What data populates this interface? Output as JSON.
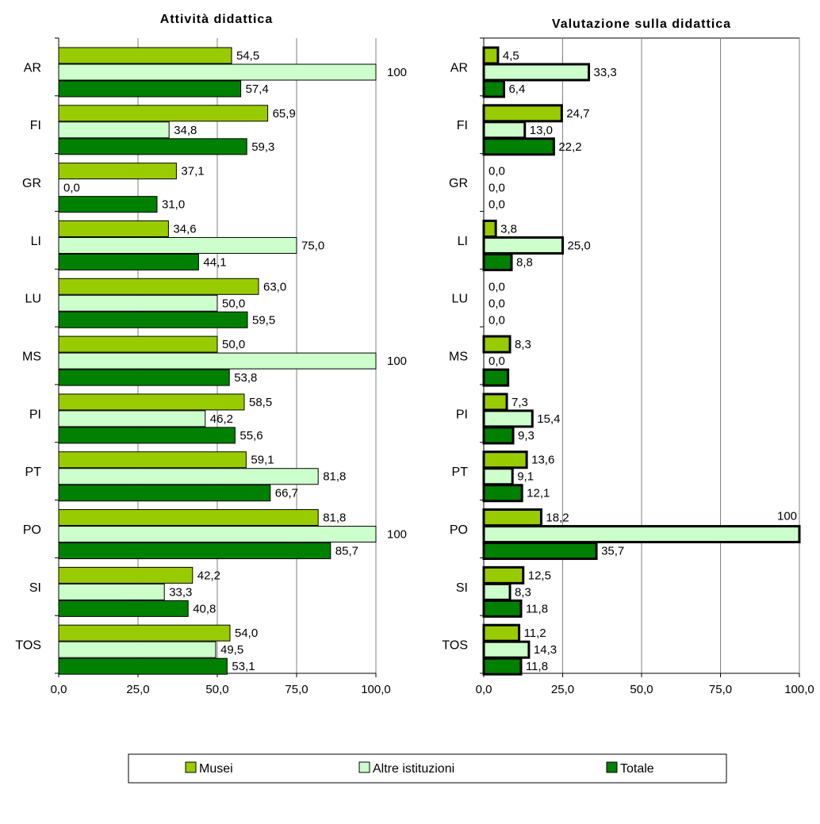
{
  "chart_data": [
    {
      "type": "bar",
      "orientation": "horizontal",
      "title": "Attività didattica",
      "categories": [
        "AR",
        "FI",
        "GR",
        "LI",
        "LU",
        "MS",
        "PI",
        "PT",
        "PO",
        "SI",
        "TOS"
      ],
      "series": [
        {
          "name": "Musei",
          "values": [
            54.5,
            65.9,
            37.1,
            34.6,
            63.0,
            50.0,
            58.5,
            59.1,
            81.8,
            42.2,
            54.0
          ]
        },
        {
          "name": "Altre istituzioni",
          "values": [
            100,
            34.8,
            0.0,
            75.0,
            50.0,
            100,
            46.2,
            81.8,
            100,
            33.3,
            49.5
          ]
        },
        {
          "name": "Totale",
          "values": [
            57.4,
            59.3,
            31.0,
            44.1,
            59.5,
            53.8,
            55.6,
            66.7,
            85.7,
            40.8,
            53.1
          ]
        }
      ],
      "labels": [
        [
          "54,5",
          "65,9",
          "37,1",
          "34,6",
          "63,0",
          "50,0",
          "58,5",
          "59,1",
          "81,8",
          "42,2",
          "54,0"
        ],
        [
          "100",
          "34,8",
          "0,0",
          "75,0",
          "50,0",
          "100",
          "46,2",
          "81,8",
          "100",
          "33,3",
          "49,5"
        ],
        [
          "57,4",
          "59,3",
          "31,0",
          "44,1",
          "59,5",
          "53,8",
          "55,6",
          "66,7",
          "85,7",
          "40,8",
          "53,1"
        ]
      ],
      "xlim": [
        0,
        100
      ],
      "xticks": [
        "0,0",
        "25,0",
        "50,0",
        "75,0",
        "100,0"
      ],
      "grid": true
    },
    {
      "type": "bar",
      "orientation": "horizontal",
      "title": "Valutazione sulla didattica",
      "categories": [
        "AR",
        "FI",
        "GR",
        "LI",
        "LU",
        "MS",
        "PI",
        "PT",
        "PO",
        "SI",
        "TOS"
      ],
      "series": [
        {
          "name": "Musei",
          "values": [
            4.5,
            24.7,
            0.0,
            3.8,
            0.0,
            8.3,
            7.3,
            13.6,
            18.2,
            12.5,
            11.2
          ]
        },
        {
          "name": "Altre istituzioni",
          "values": [
            33.3,
            13.0,
            0.0,
            25.0,
            0.0,
            0.0,
            15.4,
            9.1,
            100,
            8.3,
            14.3
          ]
        },
        {
          "name": "Totale",
          "values": [
            6.4,
            22.2,
            0.0,
            8.8,
            0.0,
            7.7,
            9.3,
            12.1,
            35.7,
            11.8,
            11.8
          ]
        }
      ],
      "labels": [
        [
          "4,5",
          "24,7",
          "0,0",
          "3,8",
          "0,0",
          "8,3",
          "7,3",
          "13,6",
          "18,2",
          "12,5",
          "11,2"
        ],
        [
          "33,3",
          "13,0",
          "0,0",
          "25,0",
          "0,0",
          "0,0",
          "15,4",
          "9,1",
          "100",
          "8,3",
          "14,3"
        ],
        [
          "6,4",
          "22,2",
          "0,0",
          "8,8",
          "0,0",
          "",
          "9,3",
          "12,1",
          "35,7",
          "11,8",
          "11,8"
        ]
      ],
      "xlim": [
        0,
        100
      ],
      "xticks": [
        "0,0",
        "25,0",
        "50,0",
        "75,0",
        "100,0"
      ],
      "grid": true
    }
  ],
  "legend": {
    "position": "bottom",
    "items": [
      {
        "name": "Musei",
        "color": "#99cc00"
      },
      {
        "name": "Altre istituzioni",
        "color": "#ccffcc"
      },
      {
        "name": "Totale",
        "color": "#008000"
      }
    ]
  },
  "colors": {
    "musei": "#99cc00",
    "altre": "#ccffcc",
    "totale": "#008000",
    "grid": "#808080"
  }
}
